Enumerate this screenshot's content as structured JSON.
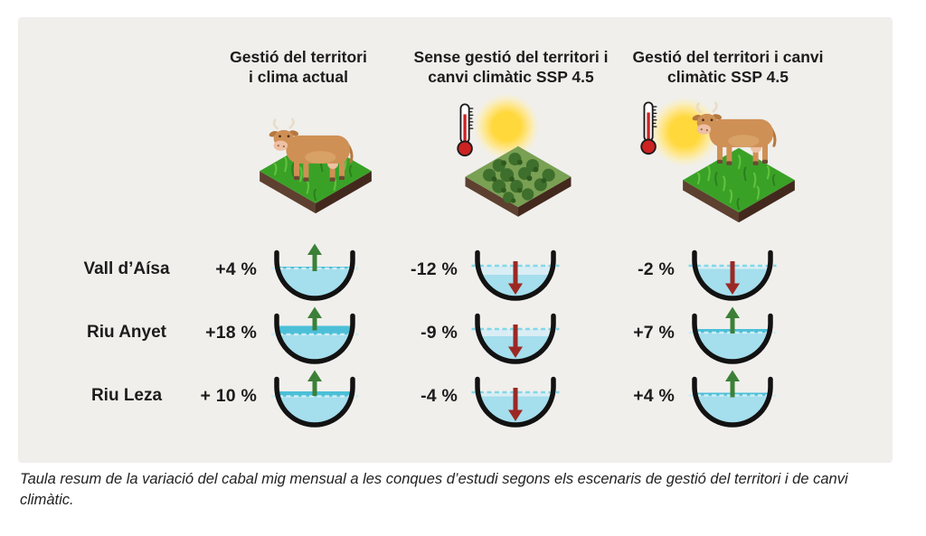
{
  "panel": {
    "bg": "#f0efec"
  },
  "columns": [
    {
      "title": "Gestió del territori\ni clima actual",
      "icon": "cow-on-grass-plot",
      "climate_icons": false
    },
    {
      "title": "Sense gestió del territori i\ncanvi climàtic SSP 4.5",
      "icon": "shrubland-plot",
      "climate_icons": true
    },
    {
      "title": "Gestió del territori i canvi\nclimàtic SSP 4.5",
      "icon": "cow-on-grass-plot",
      "climate_icons": true
    }
  ],
  "rows": [
    {
      "label": "Vall d’Aísa",
      "cells": [
        {
          "value": "+4 %",
          "direction": "up",
          "ref_level": 30,
          "water_level": 28
        },
        {
          "value": "-12 %",
          "direction": "down",
          "ref_level": 27,
          "water_level": 37
        },
        {
          "value": "-2 %",
          "direction": "down",
          "ref_level": 27,
          "water_level": 30.5
        }
      ]
    },
    {
      "label": "Riu Anyet",
      "cells": [
        {
          "value": "+18 %",
          "direction": "up",
          "ref_level": 33,
          "water_level": 23.5
        },
        {
          "value": "-9 %",
          "direction": "down",
          "ref_level": 27,
          "water_level": 35
        },
        {
          "value": "+7 %",
          "direction": "up",
          "ref_level": 31,
          "water_level": 27
        }
      ]
    },
    {
      "label": "Riu Leza",
      "cells": [
        {
          "value": "+ 10 %",
          "direction": "up",
          "ref_level": 31.5,
          "water_level": 26
        },
        {
          "value": "-4 %",
          "direction": "down",
          "ref_level": 27,
          "water_level": 31.5
        },
        {
          "value": "+4 %",
          "direction": "up",
          "ref_level": 30.5,
          "water_level": 27.5
        }
      ]
    }
  ],
  "caption": "Taula resum de la variació del cabal mig mensual a les conques d’estudi segons els escenaris de gestió del territori i de canvi climàtic.",
  "colors": {
    "water_main": "#a5deed",
    "water_dark": "#4cbfd8",
    "water_pale": "#d9edf4",
    "dashed_down": "#83d7e8",
    "dashed_up": "#cdeef6",
    "arrow_up": "#3c8038",
    "arrow_down": "#9c2823",
    "bowl_stroke": "#121212",
    "text": "#1c1c1c"
  },
  "chart_data": {
    "type": "table",
    "title": "Variació del cabal mig mensual per conques i escenaris",
    "rows": [
      "Vall d’Aísa",
      "Riu Anyet",
      "Riu Leza"
    ],
    "columns": [
      "Gestió del territori i clima actual",
      "Sense gestió del territori i canvi climàtic SSP 4.5",
      "Gestió del territori i canvi climàtic SSP 4.5"
    ],
    "values_pct": [
      [
        4,
        -12,
        -2
      ],
      [
        18,
        -9,
        7
      ],
      [
        10,
        -4,
        4
      ]
    ],
    "value_labels": [
      [
        "+4 %",
        "-12 %",
        "-2 %"
      ],
      [
        "+18 %",
        "-9 %",
        "+7 %"
      ],
      [
        "+ 10 %",
        "-4 %",
        "+4 %"
      ]
    ]
  }
}
